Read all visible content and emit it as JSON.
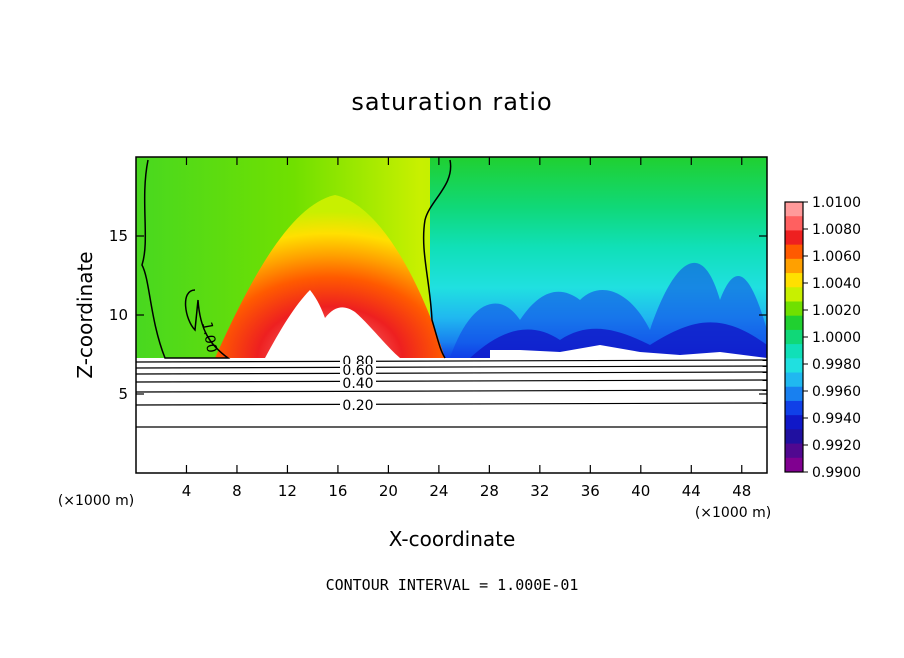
{
  "chart_data": {
    "type": "heatmap",
    "title": "saturation ratio",
    "xlabel": "X-coordinate",
    "ylabel": "Z-coordinate",
    "x_unit": "(×1000 m)",
    "y_unit": "(×1000 m)",
    "xlim": [
      0,
      50
    ],
    "ylim": [
      0,
      20
    ],
    "xticks": [
      "4",
      "8",
      "12",
      "16",
      "20",
      "24",
      "28",
      "32",
      "36",
      "40",
      "44",
      "48"
    ],
    "yticks": [
      "5",
      "10",
      "15"
    ],
    "footnote": "CONTOUR INTERVAL = 1.000E-01",
    "colorbar": {
      "labels": [
        "1.0100",
        "1.0080",
        "1.0060",
        "1.0040",
        "1.0020",
        "1.0000",
        "0.9980",
        "0.9960",
        "0.9940",
        "0.9920",
        "0.9900"
      ],
      "colors": [
        "#ff9a9a",
        "#ff6060",
        "#ee2020",
        "#ff5a00",
        "#ffa000",
        "#ffe000",
        "#c8f000",
        "#70e000",
        "#20d030",
        "#10d878",
        "#10e0b8",
        "#20e0e0",
        "#20b8f0",
        "#1880f0",
        "#1040e8",
        "#1018c8",
        "#2010a0",
        "#500890",
        "#800090"
      ]
    },
    "contour_labels": [
      "1.00",
      "0.80",
      "0.60",
      "0.40",
      "0.20"
    ]
  }
}
